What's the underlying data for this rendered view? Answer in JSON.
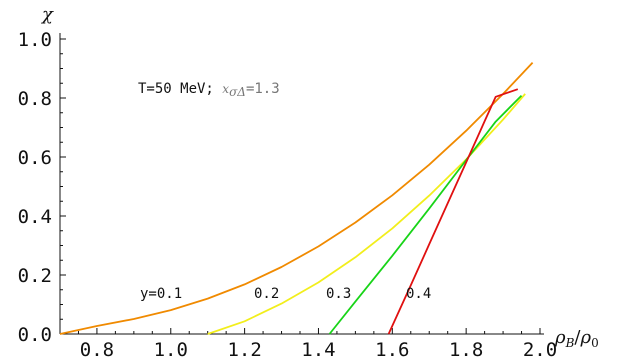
{
  "chart_data": {
    "type": "line",
    "xlabel": "ρB/ρ0",
    "xlabel_parts": {
      "rho": "ρ",
      "sub_b": "B",
      "slash": "/",
      "rho0": "ρ",
      "sub_0": "0"
    },
    "ylabel": "χ",
    "xlim": [
      0.7,
      2.0
    ],
    "ylim": [
      0.0,
      1.0
    ],
    "x_ticks": [
      0.8,
      1.0,
      1.2,
      1.4,
      1.6,
      1.8,
      2.0
    ],
    "y_ticks": [
      0.0,
      0.2,
      0.4,
      0.6,
      0.8,
      1.0
    ],
    "x_tick_labels": [
      "0.8",
      "1.0",
      "1.2",
      "1.4",
      "1.6",
      "1.8",
      "2.0"
    ],
    "y_tick_labels": [
      "0.0",
      "0.2",
      "0.4",
      "0.6",
      "0.8",
      "1.0"
    ],
    "grid": false,
    "annotation": {
      "main": "T=50 MeV; ",
      "symbol": "xσΔ",
      "value": "=1.3"
    },
    "annotation_parts": {
      "x": "x",
      "sub": "σΔ",
      "eq": "=1.3"
    },
    "series": [
      {
        "label": "y=0.1",
        "color": "#f08a00",
        "x": [
          0.7,
          0.8,
          0.9,
          1.0,
          1.1,
          1.2,
          1.3,
          1.4,
          1.5,
          1.6,
          1.7,
          1.8,
          1.9,
          1.98
        ],
        "y": [
          0.0,
          0.027,
          0.051,
          0.081,
          0.12,
          0.168,
          0.227,
          0.297,
          0.378,
          0.47,
          0.574,
          0.689,
          0.814,
          0.92
        ]
      },
      {
        "label": "0.2",
        "color": "#f2ee1c",
        "x": [
          1.1,
          1.2,
          1.3,
          1.4,
          1.5,
          1.6,
          1.7,
          1.8,
          1.9,
          1.96
        ],
        "y": [
          0.0,
          0.043,
          0.103,
          0.175,
          0.26,
          0.358,
          0.469,
          0.592,
          0.727,
          0.814
        ]
      },
      {
        "label": "0.3",
        "color": "#18d418",
        "x": [
          1.43,
          1.5,
          1.6,
          1.7,
          1.8,
          1.88,
          1.95
        ],
        "y": [
          0.0,
          0.11,
          0.265,
          0.425,
          0.59,
          0.72,
          0.808
        ]
      },
      {
        "label": "0.4",
        "color": "#e01010",
        "x": [
          1.59,
          1.65,
          1.7,
          1.75,
          1.8,
          1.85,
          1.88,
          1.94
        ],
        "y": [
          0.0,
          0.165,
          0.304,
          0.443,
          0.582,
          0.721,
          0.804,
          0.83
        ]
      }
    ]
  }
}
